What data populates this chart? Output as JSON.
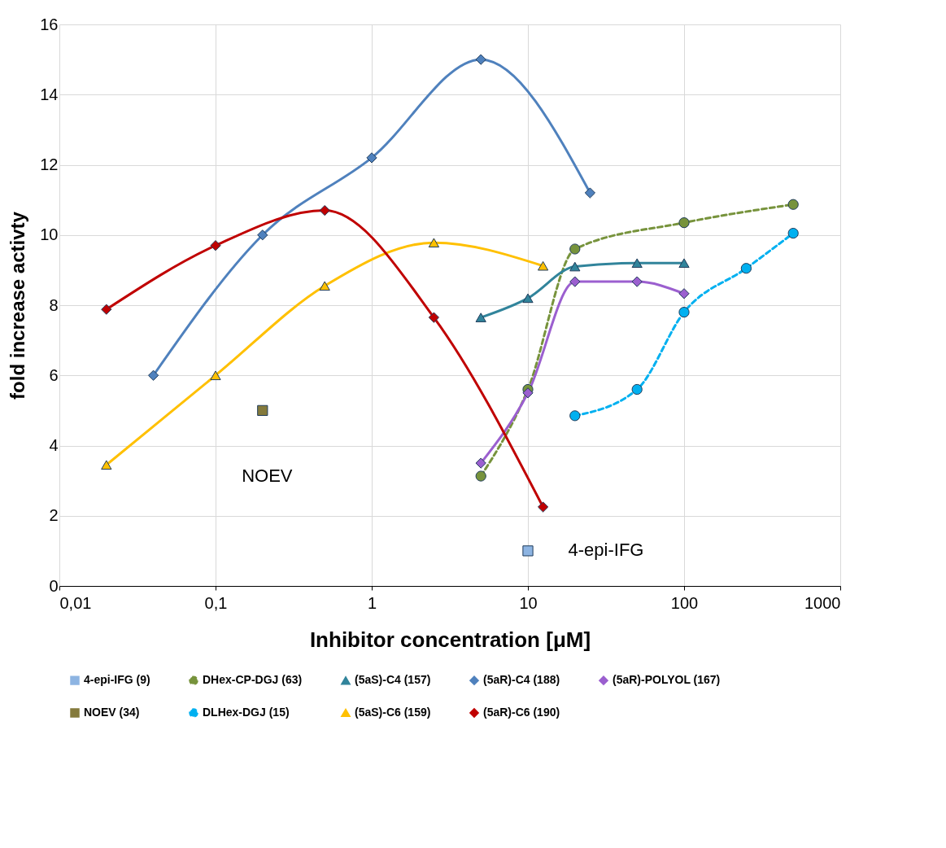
{
  "chart_data": {
    "type": "line",
    "xlabel": "Inhibitor concentration [μM]",
    "ylabel": "fold increase activty",
    "log": "x",
    "xlim": [
      0.01,
      1000
    ],
    "xticks": [
      {
        "value": 0.01,
        "label": "0,01"
      },
      {
        "value": 0.1,
        "label": "0,1"
      },
      1,
      10,
      100,
      1000
    ],
    "ylim": [
      0,
      16
    ],
    "yticks": [
      0,
      2,
      4,
      6,
      8,
      10,
      12,
      14,
      16
    ],
    "grid": true,
    "legend": "bottom",
    "series": [
      {
        "name": "4-epi-IFG  (9)",
        "color": "#8db4e2",
        "marker": "square",
        "line_style": "solid",
        "x": [
          10
        ],
        "values": [
          1.0
        ]
      },
      {
        "name": "DHex-CP-DGJ  (63)",
        "color": "#77933c",
        "marker": "circle",
        "line_style": "dashed",
        "x": [
          5,
          10,
          20,
          100,
          500
        ],
        "values": [
          3.13,
          5.6,
          9.6,
          10.35,
          10.87
        ]
      },
      {
        "name": "(5aS)-C4  (157)",
        "color": "#31849b",
        "marker": "triangle",
        "line_style": "solid",
        "x": [
          5,
          10,
          20,
          50,
          100
        ],
        "values": [
          7.65,
          8.2,
          9.1,
          9.2,
          9.2
        ]
      },
      {
        "name": "(5aR)-C4  (188)",
        "color": "#4f81bd",
        "marker": "diamond",
        "line_style": "solid",
        "x": [
          0.04,
          0.2,
          1,
          5,
          25
        ],
        "values": [
          6.0,
          10.0,
          12.2,
          15.0,
          11.2
        ]
      },
      {
        "name": "(5aR)-POLYOL  (167)",
        "color": "#9b5fcf",
        "marker": "diamond",
        "line_style": "solid",
        "x": [
          5,
          10,
          20,
          50,
          100
        ],
        "values": [
          3.5,
          5.5,
          8.67,
          8.67,
          8.33
        ]
      },
      {
        "name": "NOEV  (34)",
        "color": "#847a3c",
        "marker": "square",
        "line_style": "solid",
        "x": [
          0.2
        ],
        "values": [
          5.0
        ]
      },
      {
        "name": "DLHex-DGJ (15)",
        "color": "#00b0f0",
        "marker": "circle",
        "line_style": "dashed",
        "x": [
          20,
          50,
          100,
          250,
          500
        ],
        "values": [
          4.85,
          5.6,
          7.8,
          9.05,
          10.05
        ]
      },
      {
        "name": "(5aS)-C6  (159)",
        "color": "#ffc000",
        "marker": "triangle",
        "line_style": "solid",
        "x": [
          0.02,
          0.1,
          0.5,
          2.5,
          12.5
        ],
        "values": [
          3.45,
          6.0,
          8.55,
          9.78,
          9.12
        ]
      },
      {
        "name": "(5aR)-C6  (190)",
        "color": "#c00000",
        "marker": "diamond",
        "line_style": "solid",
        "x": [
          0.02,
          0.1,
          0.5,
          2.5,
          12.5
        ],
        "values": [
          7.88,
          9.7,
          10.7,
          7.65,
          2.25
        ]
      }
    ],
    "annotations": [
      "NOEV",
      "4-epi-IFG"
    ]
  }
}
